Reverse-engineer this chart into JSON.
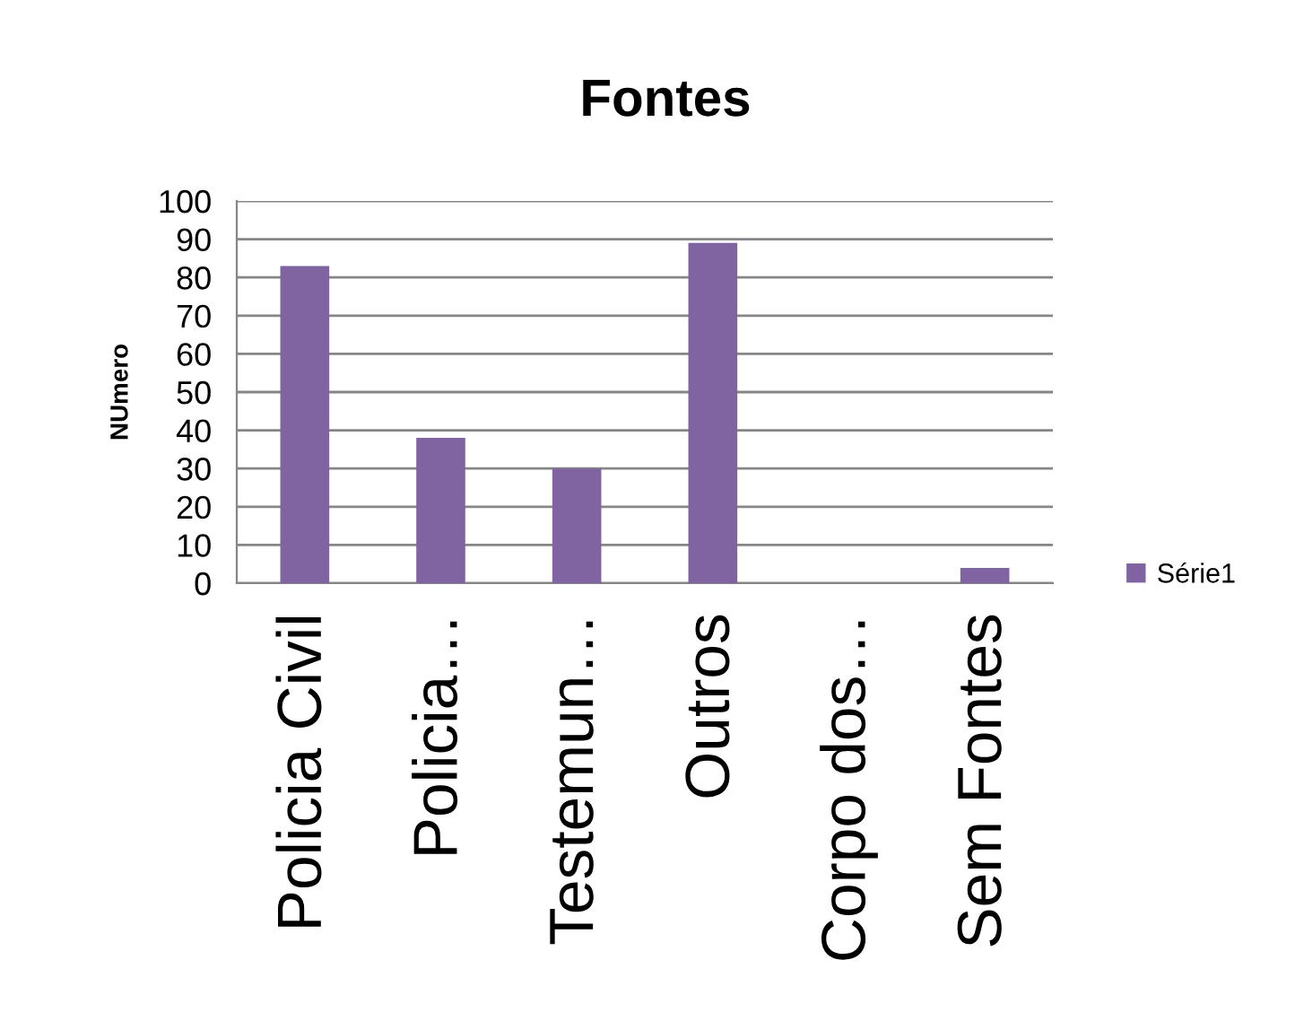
{
  "chart_data": {
    "type": "bar",
    "title": "Fontes",
    "ylabel": "NUmero",
    "categories": [
      "Policia Civil",
      "Policia…",
      "Testemun…",
      "Outros",
      "Corpo dos…",
      "Sem Fontes"
    ],
    "series": [
      {
        "name": "Série1",
        "color": "#8064a2",
        "values": [
          83,
          38,
          30,
          89,
          0,
          4
        ]
      }
    ],
    "ylim": [
      0,
      100
    ],
    "yticks": [
      0,
      10,
      20,
      30,
      40,
      50,
      60,
      70,
      80,
      90,
      100
    ],
    "grid": "y",
    "legend": "right"
  }
}
